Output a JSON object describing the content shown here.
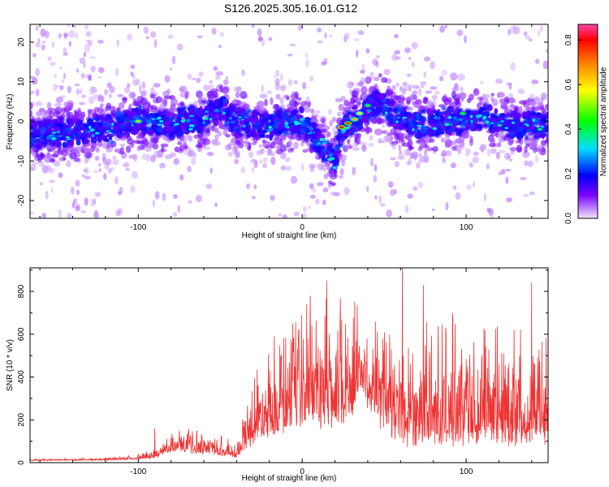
{
  "title": "S126.2025.305.16.01.G12",
  "chart_data": [
    {
      "type": "heatmap",
      "name": "spectrogram",
      "xlabel": "Height of straight line (km)",
      "ylabel": "Frequency (Hz)",
      "xlim": [
        -166,
        150
      ],
      "ylim": [
        -24.5,
        24.5
      ],
      "xticks": [
        -100,
        0,
        100
      ],
      "xtick_labels": [
        "-100",
        "0",
        "100"
      ],
      "yticks": [
        -20,
        -10,
        0,
        10,
        20
      ],
      "ytick_labels": [
        "-20",
        "-10",
        "0",
        "10",
        "20"
      ],
      "colorbar": {
        "label": "Normalized spectral amplitude",
        "range": [
          0,
          0.87
        ],
        "ticks": [
          0,
          0.2,
          0.4,
          0.6,
          0.8
        ],
        "tick_labels": [
          "0.0",
          "0.2",
          "0.4",
          "0.6",
          "0.8"
        ],
        "colormap": [
          "#f0e6ff",
          "#7b00ff",
          "#0000ff",
          "#00e0ff",
          "#00ff00",
          "#ffff00",
          "#ff8000",
          "#ff0000",
          "#ff44aa"
        ]
      },
      "ridge": {
        "x": [
          -160,
          -140,
          -120,
          -100,
          -80,
          -60,
          -48,
          -40,
          -20,
          0,
          8,
          16,
          20,
          24,
          30,
          36,
          42,
          48,
          56,
          70,
          90,
          110,
          130,
          150
        ],
        "y": [
          -3,
          -3,
          -2,
          0,
          -1,
          1,
          3,
          0,
          -1,
          0,
          -4,
          -8,
          -11,
          -2,
          0,
          2,
          4,
          5,
          1,
          -1,
          0,
          1,
          -1,
          -1
        ]
      },
      "bright_blobs": [
        {
          "x": 24,
          "y": -1.5,
          "v": 0.8
        },
        {
          "x": 28,
          "y": -0.5,
          "v": 0.7
        },
        {
          "x": 32,
          "y": 0.5,
          "v": 0.6
        },
        {
          "x": 35,
          "y": 2,
          "v": 0.55
        },
        {
          "x": 40,
          "y": 4,
          "v": 0.45
        },
        {
          "x": -100,
          "y": 0,
          "v": 0.5
        },
        {
          "x": -86,
          "y": 0,
          "v": 0.35
        },
        {
          "x": -68,
          "y": -2,
          "v": 0.35
        },
        {
          "x": 98,
          "y": 2,
          "v": 0.45
        },
        {
          "x": 145,
          "y": -2,
          "v": 0.4
        },
        {
          "x": -125,
          "y": -3,
          "v": 0.35
        },
        {
          "x": 122,
          "y": 0,
          "v": 0.3
        },
        {
          "x": -38,
          "y": 1,
          "v": 0.3
        }
      ]
    },
    {
      "type": "line",
      "name": "snr",
      "xlabel": "Height of straight line (km)",
      "ylabel": "SNR (10 * v/v)",
      "xlim": [
        -166,
        150
      ],
      "ylim": [
        0,
        910
      ],
      "xticks": [
        -100,
        0,
        100
      ],
      "xtick_labels": [
        "-100",
        "0",
        "100"
      ],
      "yticks": [
        0,
        200,
        400,
        600,
        800
      ],
      "ytick_labels": [
        "0",
        "200",
        "400",
        "600",
        "800"
      ],
      "color": "#ee3333",
      "envelope": {
        "x": [
          -166,
          -130,
          -110,
          -100,
          -90,
          -80,
          -70,
          -60,
          -50,
          -40,
          -35,
          -30,
          -25,
          -20,
          -10,
          0,
          10,
          20,
          30,
          35,
          40,
          50,
          60,
          80,
          100,
          120,
          140,
          150
        ],
        "base": [
          10,
          12,
          14,
          18,
          25,
          60,
          60,
          50,
          45,
          30,
          80,
          130,
          160,
          180,
          200,
          220,
          230,
          240,
          260,
          380,
          300,
          200,
          150,
          150,
          150,
          150,
          150,
          150
        ],
        "amp": [
          8,
          10,
          15,
          25,
          40,
          80,
          110,
          110,
          100,
          60,
          200,
          330,
          360,
          400,
          480,
          520,
          560,
          580,
          560,
          400,
          420,
          500,
          540,
          560,
          560,
          520,
          500,
          480
        ]
      },
      "peaks": [
        {
          "x": 61,
          "y": 910
        },
        {
          "x": 15,
          "y": 850
        },
        {
          "x": 74,
          "y": 830
        },
        {
          "x": 140,
          "y": 840
        },
        {
          "x": 5,
          "y": 780
        },
        {
          "x": -17,
          "y": 590
        },
        {
          "x": 35,
          "y": 470
        },
        {
          "x": -90,
          "y": 160
        }
      ]
    }
  ]
}
